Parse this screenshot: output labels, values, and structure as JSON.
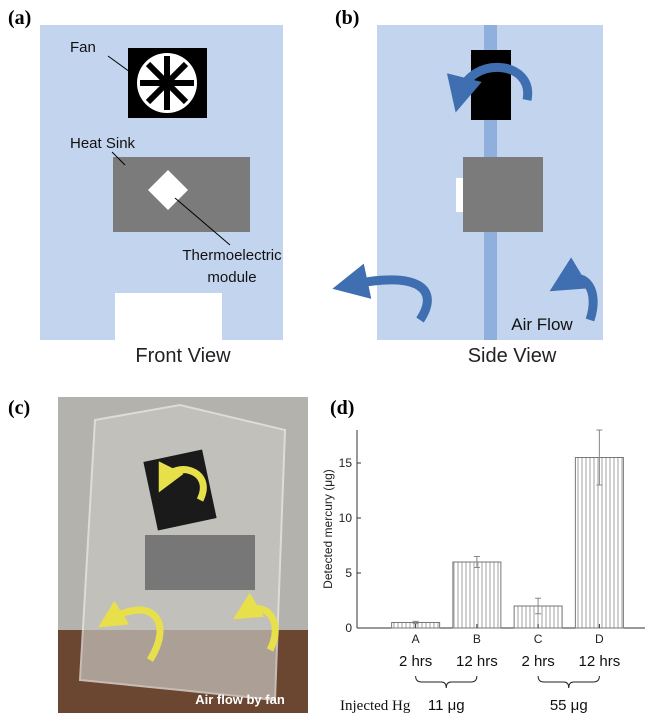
{
  "panels": {
    "a": {
      "label": "(a)",
      "fan": "Fan",
      "heat_sink": "Heat Sink",
      "module": [
        "Thermoelectric",
        "module"
      ],
      "caption": "Front View"
    },
    "b": {
      "label": "(b)",
      "air_flow": "Air Flow",
      "caption": "Side View"
    },
    "c": {
      "label": "(c)",
      "caption": "Air flow by fan"
    },
    "d": {
      "label": "(d)"
    }
  },
  "chart_data": {
    "type": "bar",
    "y_label": "Detected mercury (μg)",
    "categories": [
      "A",
      "B",
      "C",
      "D"
    ],
    "sub_labels": [
      "2 hrs",
      "12 hrs",
      "2 hrs",
      "12 hrs"
    ],
    "group_title": "Injected Hg",
    "groups": [
      "11 μg",
      "55 μg"
    ],
    "values": [
      0.5,
      6,
      2,
      15.5
    ],
    "errors": [
      0.1,
      0.5,
      0.7,
      2.5
    ],
    "ylim": [
      0,
      18
    ],
    "yticks": [
      0,
      5,
      10,
      15
    ],
    "color": "#ffffff"
  }
}
